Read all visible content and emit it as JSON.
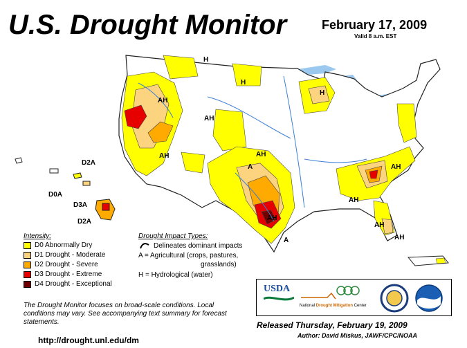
{
  "title": "U.S. Drought Monitor",
  "date": "February 17, 2009",
  "valid": "Valid 8 a.m. EST",
  "legend": {
    "intensity_title": "Intensity:",
    "items": [
      {
        "label": "D0 Abnormally Dry",
        "color": "#ffff00"
      },
      {
        "label": "D1 Drought - Moderate",
        "color": "#fcd37f"
      },
      {
        "label": "D2 Drought - Severe",
        "color": "#ffaa00"
      },
      {
        "label": "D3 Drought - Extreme",
        "color": "#e60000"
      },
      {
        "label": "D4 Drought - Exceptional",
        "color": "#730000"
      }
    ],
    "impact_title": "Drought Impact Types:",
    "impact_line": "Delineates dominant impacts",
    "impact_a": "A = Agricultural (crops, pastures,",
    "impact_a2": "grasslands)",
    "impact_h": "H = Hydrological (water)"
  },
  "note": "The Drought Monitor focuses on broad-scale conditions. Local conditions may vary. See accompanying text summary for forecast statements.",
  "url": "http://drought.unl.edu/dm",
  "released": "Released Thursday, February 19, 2009",
  "author": "Author: David Miskus, JAWF/CPC/NOAA",
  "logos": {
    "usda": "USDA",
    "ndmc_prefix": "National",
    "ndmc_main": "Drought Mitigation",
    "ndmc_suffix": "Center"
  },
  "map_labels": [
    {
      "text": "H"
    },
    {
      "text": "H"
    },
    {
      "text": "H"
    },
    {
      "text": "AH"
    },
    {
      "text": "AH"
    },
    {
      "text": "AH"
    },
    {
      "text": "AH"
    },
    {
      "text": "A"
    },
    {
      "text": "AH"
    },
    {
      "text": "AH"
    },
    {
      "text": "AH"
    },
    {
      "text": "AH"
    },
    {
      "text": "A"
    },
    {
      "text": "AH"
    }
  ],
  "hawaii_labels": [
    {
      "text": "D2A"
    },
    {
      "text": "D0A"
    },
    {
      "text": "D3A"
    },
    {
      "text": "D2A"
    }
  ]
}
